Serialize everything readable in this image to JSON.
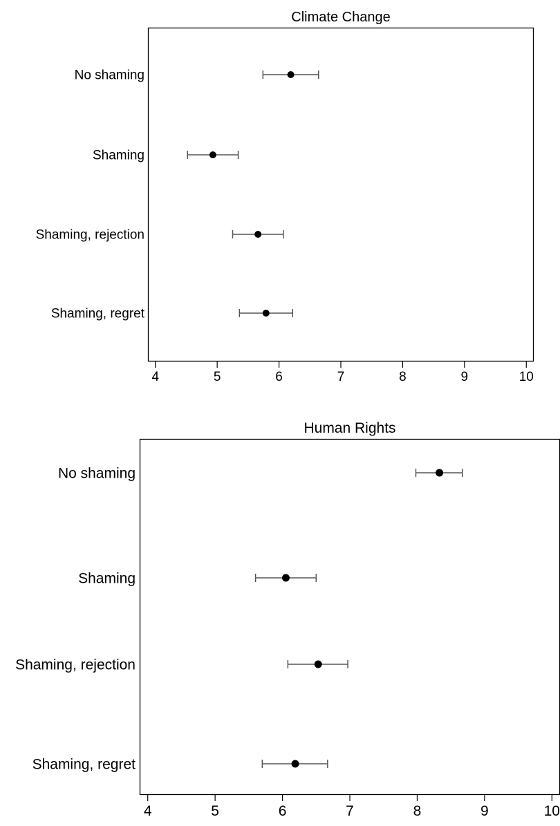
{
  "colors": {
    "frame": "#000000",
    "marker": "#000000",
    "error_bar": "#555555",
    "background": "#ffffff"
  },
  "chart_data": [
    {
      "type": "scatter",
      "title": "Climate Change",
      "xlabel": "",
      "ylabel": "",
      "categories": [
        "No shaming",
        "Shaming",
        "Shaming, rejection",
        "Shaming, regret"
      ],
      "values": [
        6.19,
        4.93,
        5.66,
        5.79
      ],
      "ci_low": [
        5.74,
        4.52,
        5.25,
        5.36
      ],
      "ci_high": [
        6.64,
        5.34,
        6.07,
        6.22
      ],
      "xlim": [
        3.88,
        10.12
      ],
      "xticks": [
        "4",
        "5",
        "6",
        "7",
        "8",
        "9",
        "10"
      ],
      "grid": false,
      "legend": "none"
    },
    {
      "type": "scatter",
      "title": "Human Rights",
      "xlabel": "",
      "ylabel": "",
      "categories": [
        "No shaming",
        "Shaming",
        "Shaming, rejection",
        "Shaming, regret"
      ],
      "values": [
        8.33,
        6.05,
        6.53,
        6.19
      ],
      "ci_low": [
        7.98,
        5.6,
        6.08,
        5.7
      ],
      "ci_high": [
        8.67,
        6.5,
        6.97,
        6.67
      ],
      "xlim": [
        3.88,
        10.12
      ],
      "xticks": [
        "4",
        "5",
        "6",
        "7",
        "8",
        "9",
        "10"
      ],
      "grid": false,
      "legend": "none"
    }
  ]
}
